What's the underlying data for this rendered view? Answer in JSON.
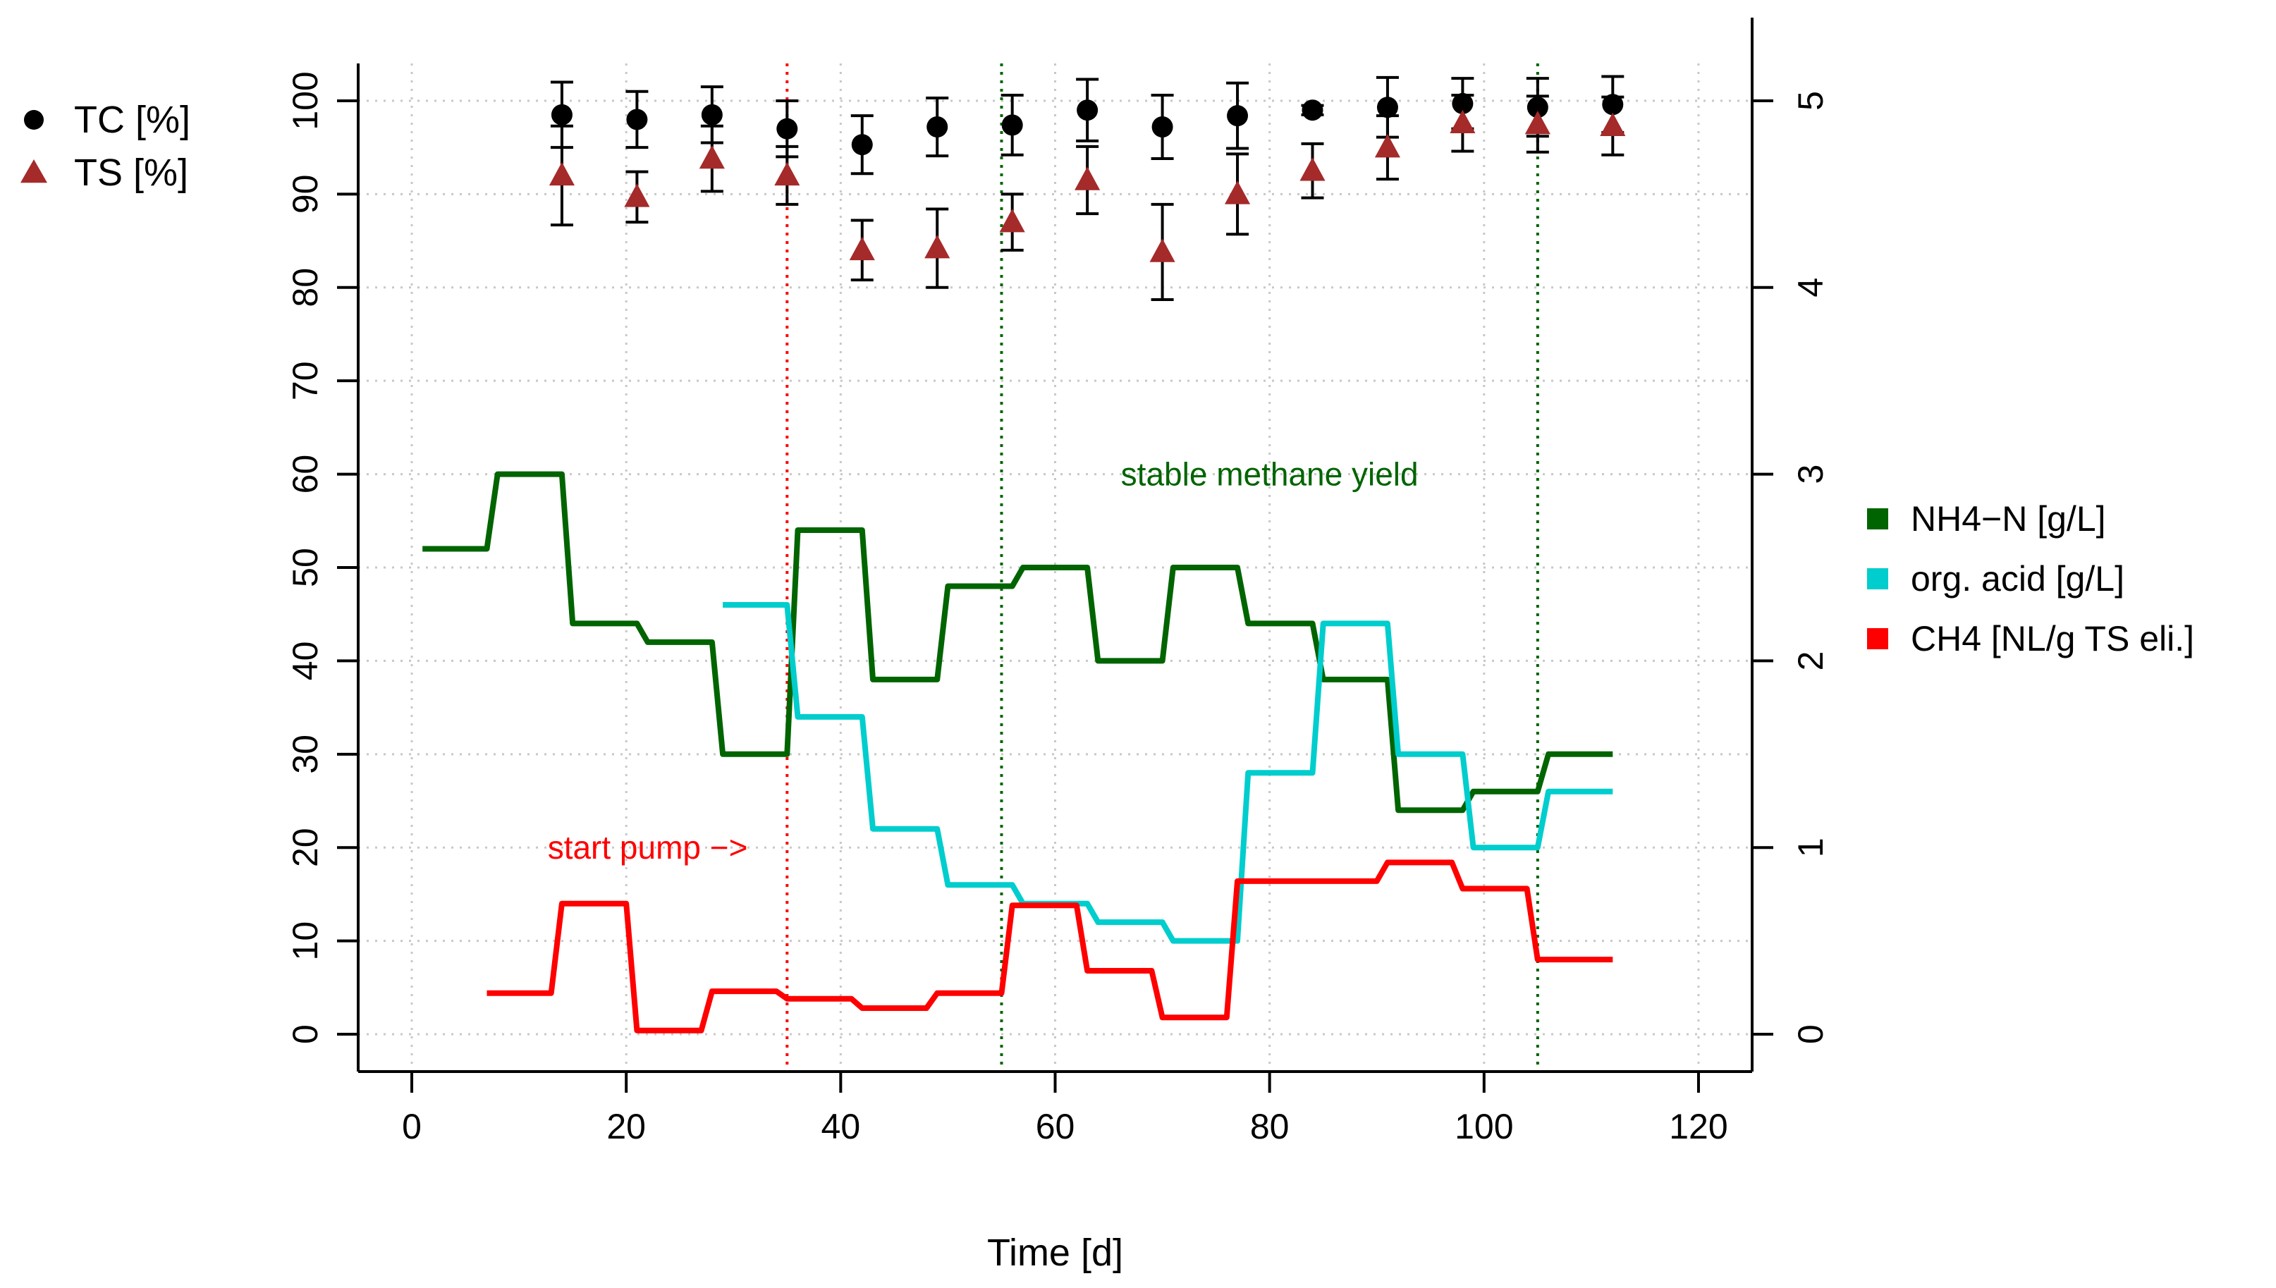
{
  "chart_data": {
    "type": "line",
    "xlabel": "Time [d]",
    "x_ticks": [
      0,
      20,
      40,
      60,
      80,
      100,
      120
    ],
    "xlim": [
      -5,
      125
    ],
    "left_axis": {
      "ticks": [
        0,
        10,
        20,
        30,
        40,
        50,
        60,
        70,
        80,
        90,
        100
      ],
      "ylim": [
        -4,
        104
      ]
    },
    "right_axis": {
      "ticks": [
        0,
        1,
        2,
        3,
        4,
        5
      ],
      "ylim": [
        -0.2,
        5.2
      ]
    },
    "grid": true,
    "legend_left": [
      {
        "label": "TC [%]",
        "symbol": "circle",
        "color": "#000000"
      },
      {
        "label": "TS [%]",
        "symbol": "triangle",
        "color": "#a52a2a"
      }
    ],
    "legend_right": [
      {
        "label": "NH4−N [g/L]",
        "color": "#006400"
      },
      {
        "label": "org. acid [g/L]",
        "color": "#00cdcd"
      },
      {
        "label": "CH4 [NL/g TS eli.]",
        "color": "#ff0000"
      }
    ],
    "annotations": [
      {
        "text": "stable methane yield",
        "x": 80,
        "y": 60,
        "color": "#006400"
      },
      {
        "text": "start pump −>",
        "x": 22,
        "y": 20,
        "color": "#ff0000"
      }
    ],
    "vlines": [
      {
        "x": 35,
        "color": "#ff0000"
      },
      {
        "x": 55,
        "color": "#006400"
      },
      {
        "x": 105,
        "color": "#006400"
      }
    ],
    "scatter_series": [
      {
        "name": "TC [%]",
        "marker": "circle",
        "color": "#000000",
        "x": [
          14,
          21,
          28,
          35,
          42,
          49,
          56,
          63,
          70,
          77,
          84,
          91,
          98,
          105,
          112
        ],
        "y": [
          98.5,
          98.0,
          98.5,
          97.0,
          95.3,
          97.2,
          97.4,
          99.0,
          97.2,
          98.4,
          99.0,
          99.3,
          99.7,
          99.3,
          99.6
        ],
        "err": [
          3.5,
          3.0,
          3.0,
          3.0,
          3.1,
          3.1,
          3.2,
          3.3,
          3.4,
          3.5,
          0.5,
          3.2,
          2.7,
          3.1,
          3.0
        ]
      },
      {
        "name": "TS [%]",
        "marker": "triangle",
        "color": "#a52a2a",
        "x": [
          14,
          21,
          28,
          35,
          42,
          49,
          56,
          63,
          70,
          77,
          84,
          91,
          98,
          105,
          112
        ],
        "y": [
          92.0,
          89.7,
          93.8,
          92.0,
          84.0,
          84.2,
          87.0,
          91.5,
          83.8,
          90.0,
          92.5,
          95.0,
          97.6,
          97.5,
          97.3
        ],
        "err": [
          5.3,
          2.7,
          3.5,
          3.1,
          3.2,
          4.2,
          3.0,
          3.6,
          5.1,
          4.3,
          2.9,
          3.4,
          3.0,
          3.0,
          3.1
        ]
      }
    ],
    "step_series": [
      {
        "name": "NH4−N [g/L]",
        "axis": "right",
        "color": "#006400",
        "segments": [
          [
            1,
            7,
            2.6
          ],
          [
            8,
            14,
            3.0
          ],
          [
            15,
            21,
            2.2
          ],
          [
            22,
            28,
            2.1
          ],
          [
            29,
            35,
            1.5
          ],
          [
            36,
            42,
            2.7
          ],
          [
            43,
            49,
            1.9
          ],
          [
            50,
            56,
            2.4
          ],
          [
            57,
            63,
            2.5
          ],
          [
            64,
            70,
            2.0
          ],
          [
            71,
            77,
            2.5
          ],
          [
            78,
            84,
            2.2
          ],
          [
            85,
            91,
            1.9
          ],
          [
            92,
            98,
            1.2
          ],
          [
            99,
            105,
            1.3
          ],
          [
            106,
            112,
            1.5
          ]
        ]
      },
      {
        "name": "org. acid [g/L]",
        "axis": "right",
        "color": "#00cdcd",
        "segments": [
          [
            29,
            35,
            2.3
          ],
          [
            36,
            42,
            1.7
          ],
          [
            43,
            49,
            1.1
          ],
          [
            50,
            56,
            0.8
          ],
          [
            57,
            63,
            0.7
          ],
          [
            64,
            70,
            0.6
          ],
          [
            71,
            77,
            0.5
          ],
          [
            78,
            84,
            1.4
          ],
          [
            85,
            91,
            2.2
          ],
          [
            92,
            98,
            1.5
          ],
          [
            99,
            105,
            1.0
          ],
          [
            106,
            112,
            1.3
          ]
        ]
      },
      {
        "name": "CH4 [NL/g TS eli.]",
        "axis": "right",
        "color": "#ff0000",
        "segments": [
          [
            7,
            13,
            0.22
          ],
          [
            14,
            20,
            0.7
          ],
          [
            21,
            27,
            0.02
          ],
          [
            28,
            34,
            0.23
          ],
          [
            35,
            41,
            0.19
          ],
          [
            42,
            48,
            0.14
          ],
          [
            49,
            55,
            0.22
          ],
          [
            56,
            62,
            0.69
          ],
          [
            63,
            69,
            0.34
          ],
          [
            70,
            76,
            0.09
          ],
          [
            77,
            83,
            0.82
          ],
          [
            84,
            90,
            0.82
          ],
          [
            91,
            97,
            0.92
          ],
          [
            98,
            104,
            0.78
          ],
          [
            105,
            112,
            0.4
          ]
        ]
      }
    ]
  }
}
